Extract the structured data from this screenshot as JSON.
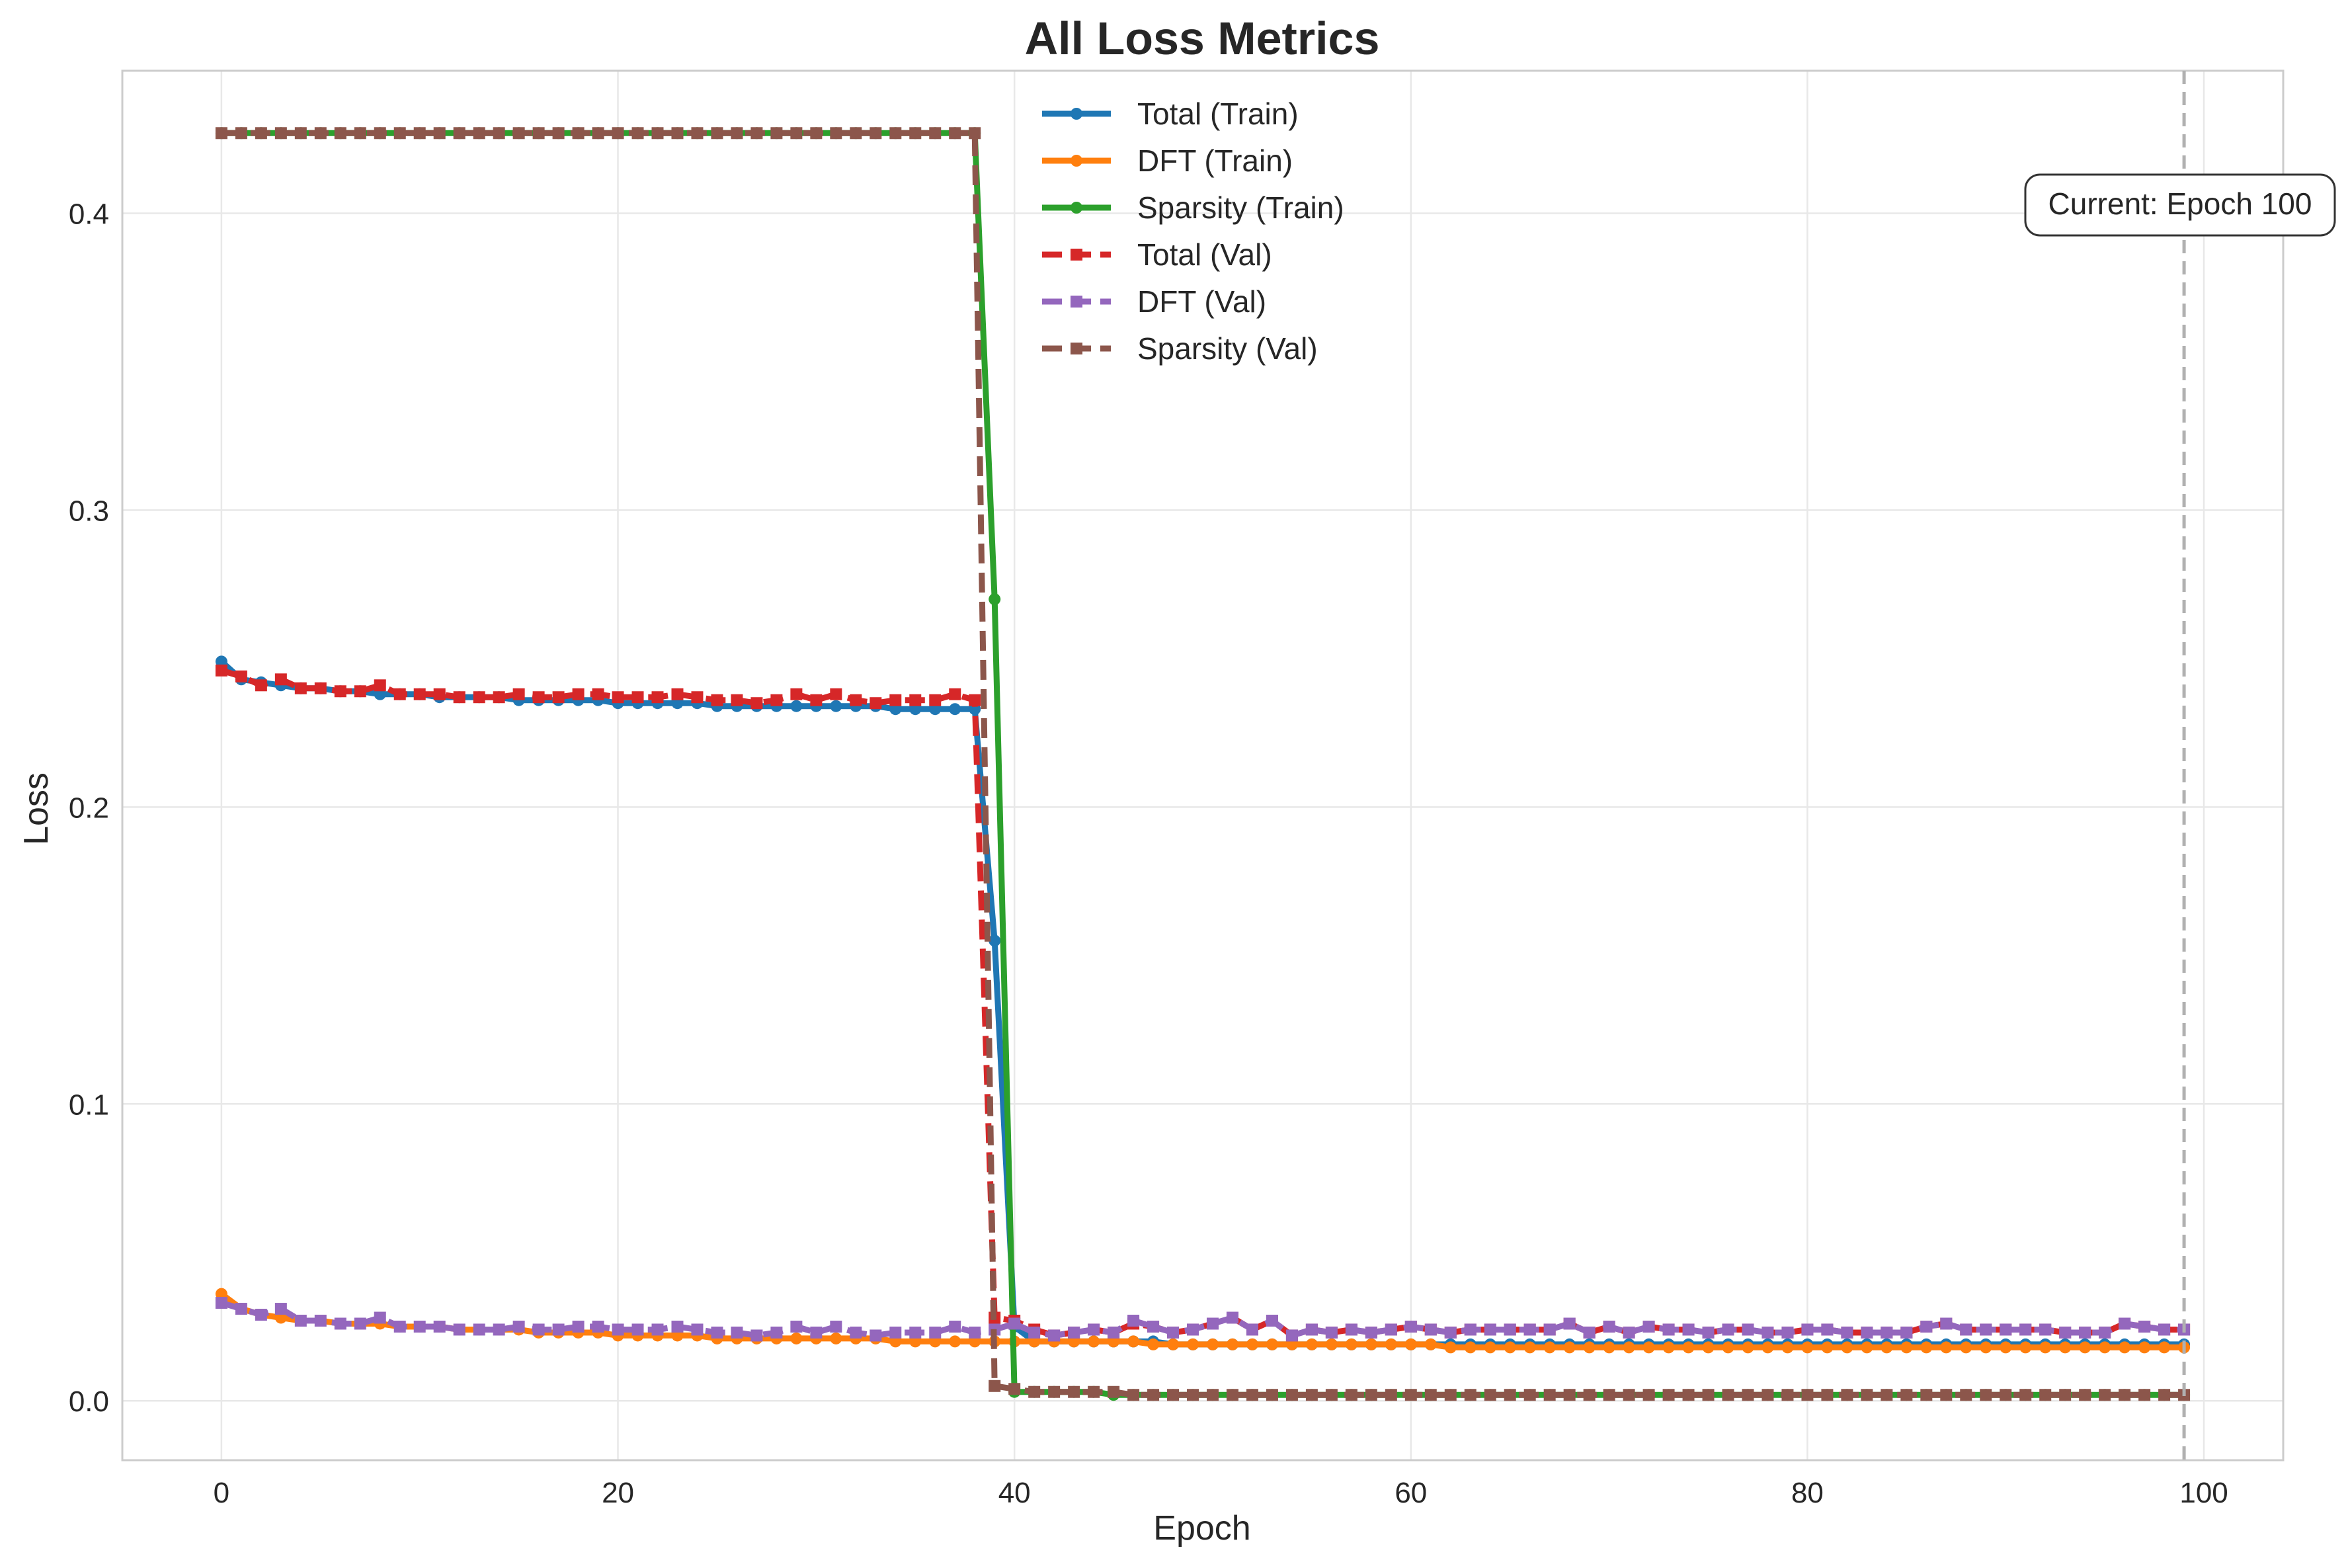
{
  "chart_data": {
    "type": "line",
    "title": "All Loss Metrics",
    "xlabel": "Epoch",
    "ylabel": "Loss",
    "xlim": [
      -5,
      104
    ],
    "ylim": [
      -0.02,
      0.448
    ],
    "xticks": [
      0,
      20,
      40,
      60,
      80,
      100
    ],
    "yticks": [
      0.0,
      0.1,
      0.2,
      0.3,
      0.4
    ],
    "ytick_labels": [
      "0.0",
      "0.1",
      "0.2",
      "0.3",
      "0.4"
    ],
    "grid": true,
    "legend_position": "top-center",
    "annotation": {
      "text": "Current: Epoch 100",
      "x": 99
    },
    "series": [
      {
        "name": "Total (Train)",
        "color": "#1f77b4",
        "style": "solid",
        "marker": "circle",
        "values": [
          0.249,
          0.243,
          0.242,
          0.241,
          0.24,
          0.24,
          0.239,
          0.239,
          0.238,
          0.238,
          0.238,
          0.237,
          0.237,
          0.237,
          0.237,
          0.236,
          0.236,
          0.236,
          0.236,
          0.236,
          0.235,
          0.235,
          0.235,
          0.235,
          0.235,
          0.234,
          0.234,
          0.234,
          0.234,
          0.234,
          0.234,
          0.234,
          0.234,
          0.234,
          0.233,
          0.233,
          0.233,
          0.233,
          0.233,
          0.155,
          0.025,
          0.02,
          0.02,
          0.02,
          0.02,
          0.02,
          0.02,
          0.02,
          0.019,
          0.019,
          0.019,
          0.019,
          0.019,
          0.019,
          0.019,
          0.019,
          0.019,
          0.019,
          0.019,
          0.019,
          0.019,
          0.019,
          0.019,
          0.019,
          0.019,
          0.019,
          0.019,
          0.019,
          0.019,
          0.019,
          0.019,
          0.019,
          0.019,
          0.019,
          0.019,
          0.019,
          0.019,
          0.019,
          0.019,
          0.019,
          0.019,
          0.019,
          0.019,
          0.019,
          0.019,
          0.019,
          0.019,
          0.019,
          0.019,
          0.019,
          0.019,
          0.019,
          0.019,
          0.019,
          0.019,
          0.019,
          0.019,
          0.019,
          0.019,
          0.019
        ]
      },
      {
        "name": "DFT (Train)",
        "color": "#ff7f0e",
        "style": "solid",
        "marker": "circle",
        "values": [
          0.036,
          0.031,
          0.029,
          0.028,
          0.027,
          0.027,
          0.026,
          0.026,
          0.026,
          0.025,
          0.025,
          0.025,
          0.024,
          0.024,
          0.024,
          0.024,
          0.023,
          0.023,
          0.023,
          0.023,
          0.022,
          0.022,
          0.022,
          0.022,
          0.022,
          0.021,
          0.021,
          0.021,
          0.021,
          0.021,
          0.021,
          0.021,
          0.021,
          0.021,
          0.02,
          0.02,
          0.02,
          0.02,
          0.02,
          0.02,
          0.02,
          0.02,
          0.02,
          0.02,
          0.02,
          0.02,
          0.02,
          0.019,
          0.019,
          0.019,
          0.019,
          0.019,
          0.019,
          0.019,
          0.019,
          0.019,
          0.019,
          0.019,
          0.019,
          0.019,
          0.019,
          0.019,
          0.018,
          0.018,
          0.018,
          0.018,
          0.018,
          0.018,
          0.018,
          0.018,
          0.018,
          0.018,
          0.018,
          0.018,
          0.018,
          0.018,
          0.018,
          0.018,
          0.018,
          0.018,
          0.018,
          0.018,
          0.018,
          0.018,
          0.018,
          0.018,
          0.018,
          0.018,
          0.018,
          0.018,
          0.018,
          0.018,
          0.018,
          0.018,
          0.018,
          0.018,
          0.018,
          0.018,
          0.018,
          0.018
        ]
      },
      {
        "name": "Sparsity (Train)",
        "color": "#2ca02c",
        "style": "solid",
        "marker": "circle",
        "values": [
          0.427,
          0.427,
          0.427,
          0.427,
          0.427,
          0.427,
          0.427,
          0.427,
          0.427,
          0.427,
          0.427,
          0.427,
          0.427,
          0.427,
          0.427,
          0.427,
          0.427,
          0.427,
          0.427,
          0.427,
          0.427,
          0.427,
          0.427,
          0.427,
          0.427,
          0.427,
          0.427,
          0.427,
          0.427,
          0.427,
          0.427,
          0.427,
          0.427,
          0.427,
          0.427,
          0.427,
          0.427,
          0.427,
          0.427,
          0.27,
          0.003,
          0.003,
          0.003,
          0.003,
          0.003,
          0.002,
          0.002,
          0.002,
          0.002,
          0.002,
          0.002,
          0.002,
          0.002,
          0.002,
          0.002,
          0.002,
          0.002,
          0.002,
          0.002,
          0.002,
          0.002,
          0.002,
          0.002,
          0.002,
          0.002,
          0.002,
          0.002,
          0.002,
          0.002,
          0.002,
          0.002,
          0.002,
          0.002,
          0.002,
          0.002,
          0.002,
          0.002,
          0.002,
          0.002,
          0.002,
          0.002,
          0.002,
          0.002,
          0.002,
          0.002,
          0.002,
          0.002,
          0.002,
          0.002,
          0.002,
          0.002,
          0.002,
          0.002,
          0.002,
          0.002,
          0.002,
          0.002,
          0.002,
          0.002,
          0.002
        ]
      },
      {
        "name": "Total (Val)",
        "color": "#d62728",
        "style": "dashed",
        "marker": "square",
        "values": [
          0.246,
          0.244,
          0.241,
          0.243,
          0.24,
          0.24,
          0.239,
          0.239,
          0.241,
          0.238,
          0.238,
          0.238,
          0.237,
          0.237,
          0.237,
          0.238,
          0.237,
          0.237,
          0.238,
          0.238,
          0.237,
          0.237,
          0.237,
          0.238,
          0.237,
          0.236,
          0.236,
          0.235,
          0.236,
          0.238,
          0.236,
          0.238,
          0.236,
          0.235,
          0.236,
          0.236,
          0.236,
          0.238,
          0.236,
          0.028,
          0.027,
          0.024,
          0.022,
          0.023,
          0.024,
          0.023,
          0.026,
          0.025,
          0.023,
          0.024,
          0.026,
          0.028,
          0.024,
          0.027,
          0.022,
          0.024,
          0.023,
          0.024,
          0.023,
          0.024,
          0.025,
          0.024,
          0.023,
          0.024,
          0.024,
          0.024,
          0.024,
          0.024,
          0.026,
          0.023,
          0.025,
          0.023,
          0.025,
          0.024,
          0.024,
          0.023,
          0.024,
          0.024,
          0.023,
          0.023,
          0.024,
          0.024,
          0.023,
          0.023,
          0.023,
          0.023,
          0.025,
          0.026,
          0.024,
          0.024,
          0.024,
          0.024,
          0.024,
          0.023,
          0.023,
          0.023,
          0.026,
          0.025,
          0.024,
          0.024
        ]
      },
      {
        "name": "DFT (Val)",
        "color": "#9467bd",
        "style": "dashed",
        "marker": "square",
        "values": [
          0.033,
          0.031,
          0.029,
          0.031,
          0.027,
          0.027,
          0.026,
          0.026,
          0.028,
          0.025,
          0.025,
          0.025,
          0.024,
          0.024,
          0.024,
          0.025,
          0.024,
          0.024,
          0.025,
          0.025,
          0.024,
          0.024,
          0.024,
          0.025,
          0.024,
          0.023,
          0.023,
          0.022,
          0.023,
          0.025,
          0.023,
          0.025,
          0.023,
          0.022,
          0.023,
          0.023,
          0.023,
          0.025,
          0.023,
          0.024,
          0.026,
          0.023,
          0.022,
          0.023,
          0.024,
          0.023,
          0.027,
          0.025,
          0.023,
          0.024,
          0.026,
          0.028,
          0.024,
          0.027,
          0.022,
          0.024,
          0.023,
          0.024,
          0.023,
          0.024,
          0.025,
          0.024,
          0.023,
          0.024,
          0.024,
          0.024,
          0.024,
          0.024,
          0.026,
          0.023,
          0.025,
          0.023,
          0.025,
          0.024,
          0.024,
          0.023,
          0.024,
          0.024,
          0.023,
          0.023,
          0.024,
          0.024,
          0.023,
          0.023,
          0.023,
          0.023,
          0.025,
          0.026,
          0.024,
          0.024,
          0.024,
          0.024,
          0.024,
          0.023,
          0.023,
          0.023,
          0.026,
          0.025,
          0.024,
          0.024
        ]
      },
      {
        "name": "Sparsity (Val)",
        "color": "#8c564b",
        "style": "dashed",
        "marker": "square",
        "values": [
          0.427,
          0.427,
          0.427,
          0.427,
          0.427,
          0.427,
          0.427,
          0.427,
          0.427,
          0.427,
          0.427,
          0.427,
          0.427,
          0.427,
          0.427,
          0.427,
          0.427,
          0.427,
          0.427,
          0.427,
          0.427,
          0.427,
          0.427,
          0.427,
          0.427,
          0.427,
          0.427,
          0.427,
          0.427,
          0.427,
          0.427,
          0.427,
          0.427,
          0.427,
          0.427,
          0.427,
          0.427,
          0.427,
          0.427,
          0.005,
          0.004,
          0.003,
          0.003,
          0.003,
          0.003,
          0.003,
          0.002,
          0.002,
          0.002,
          0.002,
          0.002,
          0.002,
          0.002,
          0.002,
          0.002,
          0.002,
          0.002,
          0.002,
          0.002,
          0.002,
          0.002,
          0.002,
          0.002,
          0.002,
          0.002,
          0.002,
          0.002,
          0.002,
          0.002,
          0.002,
          0.002,
          0.002,
          0.002,
          0.002,
          0.002,
          0.002,
          0.002,
          0.002,
          0.002,
          0.002,
          0.002,
          0.002,
          0.002,
          0.002,
          0.002,
          0.002,
          0.002,
          0.002,
          0.002,
          0.002,
          0.002,
          0.002,
          0.002,
          0.002,
          0.002,
          0.002,
          0.002,
          0.002,
          0.002,
          0.002
        ]
      }
    ]
  }
}
